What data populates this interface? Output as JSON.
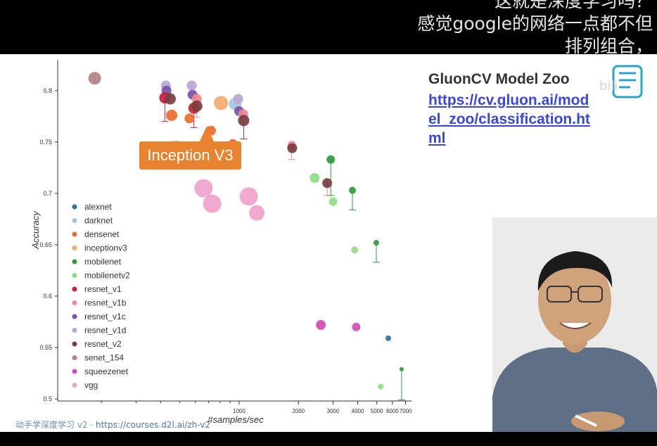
{
  "subtitle": {
    "line1": "这就是深度学习吗？",
    "line2": "感觉google的网络一点都不但",
    "line3": "排列组合，"
  },
  "slide": {
    "title": "GluonCV Model Zoo",
    "link": "https://cv.gluon.ai/model_zoo/classification.html",
    "callout": "Inception V3",
    "footer_text": "动手学深度学习 v2 · ",
    "footer_link": "https://courses.d2l.ai/zh-v2"
  },
  "colors": {
    "alexnet": "#2c6e9b",
    "darknet": "#a9c4e0",
    "densenet": "#ec6b2d",
    "inceptionv3": "#f5a96c",
    "mobilenet": "#2e9a3c",
    "mobilenetv2": "#91dc84",
    "resnet_v1": "#c4213a",
    "resnet_v1b": "#ef8896",
    "resnet_v1c": "#7b53a8",
    "resnet_v1d": "#b8a6d2",
    "resnet_v2": "#7a3e3e",
    "senet_154": "#b08282",
    "squeezenet": "#d14ab8",
    "vgg": "#f0a3cb"
  },
  "chart_data": {
    "type": "scatter",
    "xlabel": "#samples/sec",
    "ylabel": "Accuracy",
    "x_scale": "log",
    "xlim": [
      120,
      7500
    ],
    "ylim": [
      0.498,
      0.83
    ],
    "yticks": [
      "0.5",
      "0.55",
      "0.6",
      "0.65",
      "0.7",
      "0.75",
      "0.8"
    ],
    "xticks": [
      "1000",
      "2000",
      "3000",
      "4000",
      "5000",
      "6000",
      "7000"
    ],
    "legend_position": "left",
    "legend": [
      "alexnet",
      "darknet",
      "densenet",
      "inceptionv3",
      "mobilenet",
      "mobilenetv2",
      "resnet_v1",
      "resnet_v1b",
      "resnet_v1c",
      "resnet_v1d",
      "resnet_v2",
      "senet_154",
      "squeezenet",
      "vgg"
    ],
    "points": [
      {
        "s": "senet_154",
        "x": 185,
        "y": 0.812,
        "r": 9
      },
      {
        "s": "resnet_v1d",
        "x": 425,
        "y": 0.805,
        "r": 7
      },
      {
        "s": "resnet_v1c",
        "x": 428,
        "y": 0.8,
        "r": 7
      },
      {
        "s": "resnet_v1",
        "x": 420,
        "y": 0.793,
        "r": 8
      },
      {
        "s": "resnet_v2",
        "x": 447,
        "y": 0.792,
        "r": 8
      },
      {
        "s": "densenet",
        "x": 455,
        "y": 0.776,
        "r": 8
      },
      {
        "s": "resnet_v1d",
        "x": 575,
        "y": 0.805,
        "r": 7
      },
      {
        "s": "resnet_v1c",
        "x": 580,
        "y": 0.796,
        "r": 7
      },
      {
        "s": "resnet_v1b",
        "x": 610,
        "y": 0.792,
        "r": 7
      },
      {
        "s": "resnet_v1",
        "x": 590,
        "y": 0.783,
        "r": 8
      },
      {
        "s": "resnet_v2",
        "x": 610,
        "y": 0.785,
        "r": 8
      },
      {
        "s": "densenet",
        "x": 560,
        "y": 0.773,
        "r": 7
      },
      {
        "s": "densenet",
        "x": 720,
        "y": 0.761,
        "r": 7
      },
      {
        "s": "inceptionv3",
        "x": 810,
        "y": 0.788,
        "r": 10
      },
      {
        "s": "darknet",
        "x": 955,
        "y": 0.787,
        "r": 9
      },
      {
        "s": "resnet_v1d",
        "x": 990,
        "y": 0.792,
        "r": 7
      },
      {
        "s": "resnet_v1c",
        "x": 1000,
        "y": 0.78,
        "r": 7
      },
      {
        "s": "resnet_v1b",
        "x": 1050,
        "y": 0.777,
        "r": 7
      },
      {
        "s": "resnet_v2",
        "x": 1055,
        "y": 0.771,
        "r": 8
      },
      {
        "s": "densenet",
        "x": 930,
        "y": 0.748,
        "r": 7
      },
      {
        "s": "vgg",
        "x": 475,
        "y": 0.744,
        "r": 11
      },
      {
        "s": "vgg",
        "x": 660,
        "y": 0.705,
        "r": 13
      },
      {
        "s": "vgg",
        "x": 730,
        "y": 0.69,
        "r": 13
      },
      {
        "s": "vgg",
        "x": 1120,
        "y": 0.697,
        "r": 13
      },
      {
        "s": "vgg",
        "x": 1230,
        "y": 0.681,
        "r": 11
      },
      {
        "s": "resnet_v1b",
        "x": 1850,
        "y": 0.747,
        "r": 6
      },
      {
        "s": "resnet_v2",
        "x": 1860,
        "y": 0.744,
        "r": 7
      },
      {
        "s": "mobilenetv2",
        "x": 2420,
        "y": 0.715,
        "r": 7
      },
      {
        "s": "resnet_v2",
        "x": 2800,
        "y": 0.71,
        "r": 7
      },
      {
        "s": "mobilenet",
        "x": 2920,
        "y": 0.733,
        "r": 6
      },
      {
        "s": "mobilenetv2",
        "x": 3000,
        "y": 0.692,
        "r": 6
      },
      {
        "s": "mobilenet",
        "x": 3760,
        "y": 0.703,
        "r": 5
      },
      {
        "s": "mobilenetv2",
        "x": 3860,
        "y": 0.645,
        "r": 5
      },
      {
        "s": "mobilenet",
        "x": 4970,
        "y": 0.652,
        "r": 4
      },
      {
        "s": "squeezenet",
        "x": 2600,
        "y": 0.572,
        "r": 7
      },
      {
        "s": "squeezenet",
        "x": 3930,
        "y": 0.57,
        "r": 6
      },
      {
        "s": "alexnet",
        "x": 5720,
        "y": 0.559,
        "r": 4
      },
      {
        "s": "mobilenetv2",
        "x": 5240,
        "y": 0.512,
        "r": 4
      },
      {
        "s": "mobilenet",
        "x": 6680,
        "y": 0.529,
        "r": 3
      }
    ],
    "error_bars": [
      {
        "s": "resnet_v1",
        "x": 420,
        "y1": 0.793,
        "y2": 0.77
      },
      {
        "s": "resnet_v1",
        "x": 590,
        "y1": 0.783,
        "y2": 0.764
      },
      {
        "s": "resnet_v1b",
        "x": 610,
        "y1": 0.792,
        "y2": 0.774
      },
      {
        "s": "resnet_v2",
        "x": 1055,
        "y1": 0.771,
        "y2": 0.753
      },
      {
        "s": "resnet_v1b",
        "x": 1850,
        "y1": 0.744,
        "y2": 0.733
      },
      {
        "s": "resnet_v1b",
        "x": 2800,
        "y1": 0.71,
        "y2": 0.698
      },
      {
        "s": "mobilenet",
        "x": 2920,
        "y1": 0.733,
        "y2": 0.698
      },
      {
        "s": "mobilenet",
        "x": 3760,
        "y1": 0.703,
        "y2": 0.684
      },
      {
        "s": "mobilenet",
        "x": 4970,
        "y1": 0.652,
        "y2": 0.633
      },
      {
        "s": "mobilenet",
        "x": 6680,
        "y1": 0.529,
        "y2": 0.499
      }
    ]
  }
}
